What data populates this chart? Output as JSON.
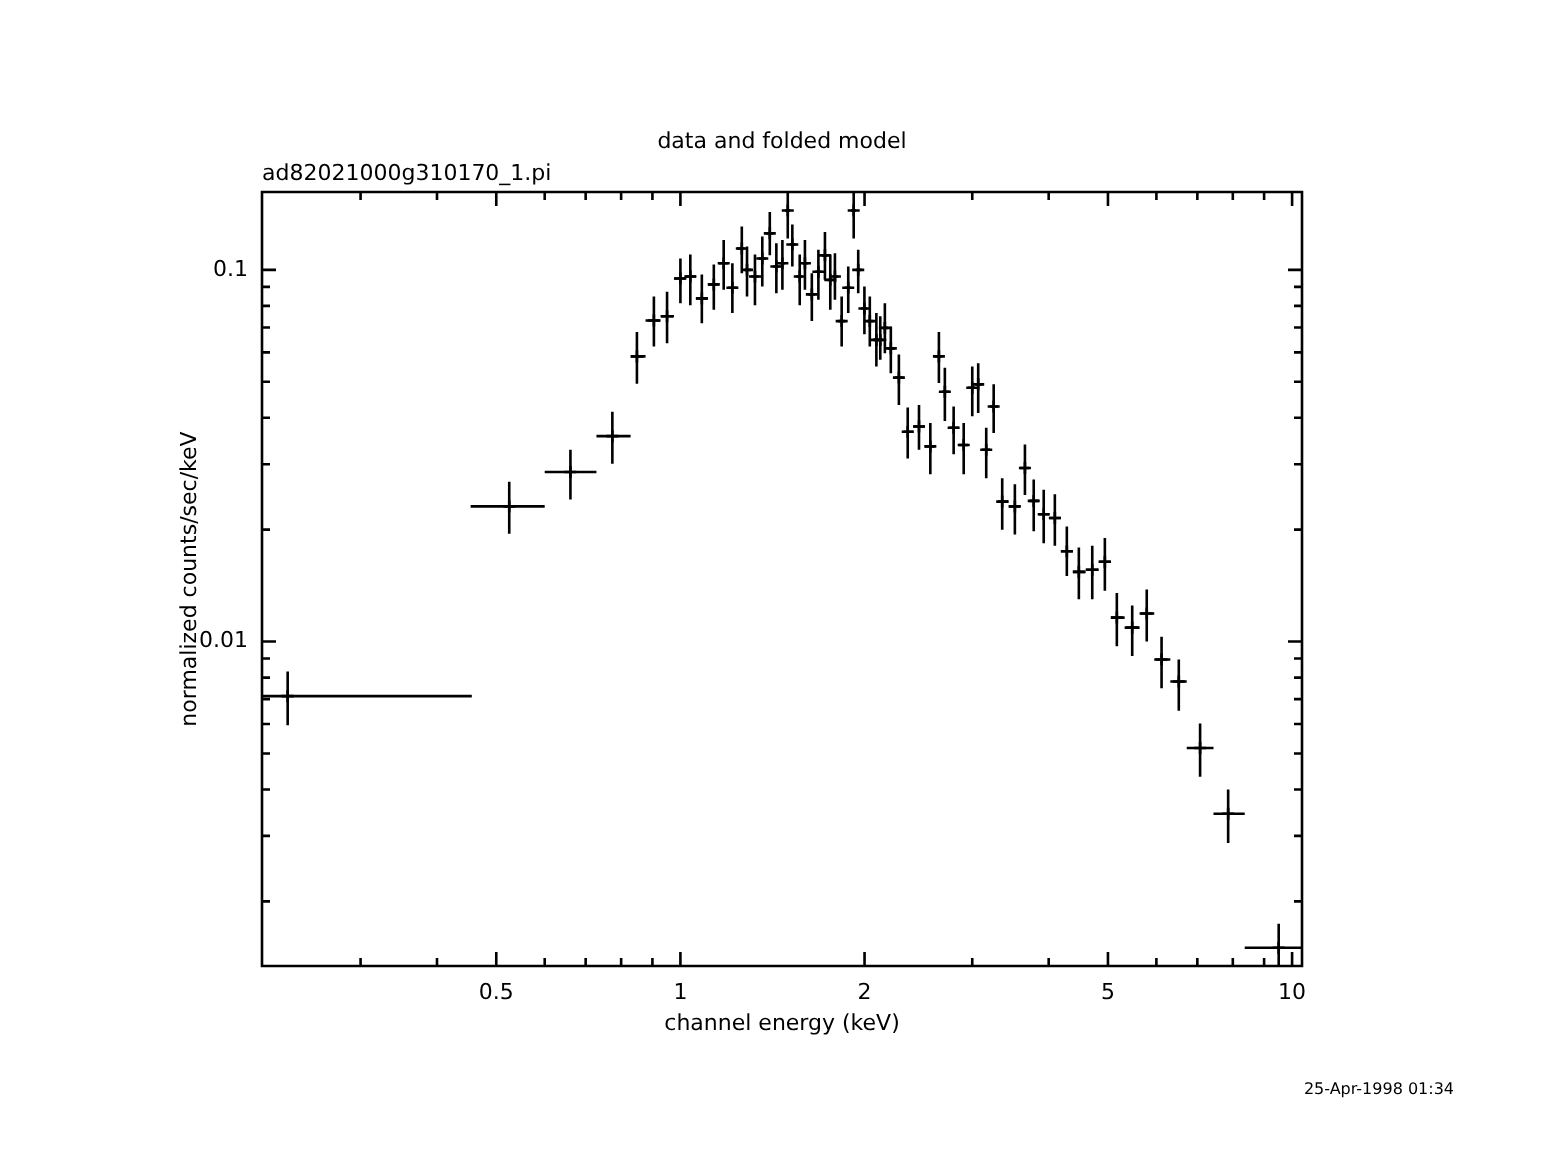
{
  "chart_data": {
    "type": "scatter",
    "title": "data and folded model",
    "subtitle": "ad82021000g310170_1.pi",
    "xlabel": "channel energy (keV)",
    "ylabel": "normalized counts/sec/keV",
    "annotations": [
      "25-Apr-1998 01:34"
    ],
    "log": "xy",
    "marker": "cross",
    "color": "#000000",
    "xlim": [
      0.207,
      10.38
    ],
    "ylim": [
      0.00134,
      0.162
    ],
    "xticks": [
      {
        "value": 0.3,
        "label": null
      },
      {
        "value": 0.4,
        "label": null
      },
      0.5,
      {
        "value": 0.6,
        "label": null
      },
      {
        "value": 0.7,
        "label": null
      },
      {
        "value": 0.8,
        "label": null
      },
      {
        "value": 0.9,
        "label": null
      },
      1,
      2,
      {
        "value": 3,
        "label": null
      },
      {
        "value": 4,
        "label": null
      },
      5,
      {
        "value": 6,
        "label": null
      },
      {
        "value": 7,
        "label": null
      },
      {
        "value": 8,
        "label": null
      },
      {
        "value": 9,
        "label": null
      },
      10
    ],
    "yticks": [
      {
        "value": 0.002,
        "label": null
      },
      {
        "value": 0.003,
        "label": null
      },
      {
        "value": 0.004,
        "label": null
      },
      {
        "value": 0.005,
        "label": null
      },
      {
        "value": 0.006,
        "label": null
      },
      {
        "value": 0.007,
        "label": null
      },
      {
        "value": 0.008,
        "label": null
      },
      {
        "value": 0.009,
        "label": null
      },
      0.01,
      {
        "value": 0.02,
        "label": null
      },
      {
        "value": 0.03,
        "label": null
      },
      {
        "value": 0.04,
        "label": null
      },
      {
        "value": 0.05,
        "label": null
      },
      {
        "value": 0.06,
        "label": null
      },
      {
        "value": 0.07,
        "label": null
      },
      {
        "value": 0.08,
        "label": null
      },
      {
        "value": 0.09,
        "label": null
      },
      0.1
    ],
    "x": [
      0.228,
      0.525,
      0.661,
      0.774,
      0.849,
      0.905,
      0.951,
      1.0,
      1.038,
      1.084,
      1.134,
      1.177,
      1.216,
      1.26,
      1.285,
      1.324,
      1.361,
      1.4,
      1.435,
      1.468,
      1.498,
      1.524,
      1.567,
      1.598,
      1.64,
      1.681,
      1.723,
      1.758,
      1.789,
      1.835,
      1.881,
      1.92,
      1.953,
      1.999,
      2.04,
      2.091,
      2.122,
      2.159,
      2.208,
      2.276,
      2.353,
      2.455,
      2.562,
      2.646,
      2.706,
      2.797,
      2.905,
      3.0,
      3.068,
      3.162,
      3.252,
      3.358,
      3.522,
      3.658,
      3.781,
      3.926,
      4.094,
      4.283,
      4.481,
      4.713,
      4.942,
      5.17,
      5.478,
      5.786,
      6.118,
      6.528,
      7.073,
      7.861,
      9.508
    ],
    "values": [
      0.00713,
      0.0231,
      0.0286,
      0.0357,
      0.0585,
      0.0731,
      0.075,
      0.0948,
      0.096,
      0.0838,
      0.0914,
      0.1042,
      0.0895,
      0.1142,
      0.1,
      0.096,
      0.1073,
      0.1254,
      0.1021,
      0.1042,
      0.1444,
      0.117,
      0.096,
      0.1042,
      0.0859,
      0.0988,
      0.1094,
      0.094,
      0.096,
      0.0728,
      0.0895,
      0.1444,
      0.1,
      0.0787,
      0.0728,
      0.0648,
      0.0648,
      0.0698,
      0.0615,
      0.0513,
      0.0367,
      0.0379,
      0.0335,
      0.0585,
      0.047,
      0.0376,
      0.0338,
      0.0482,
      0.0492,
      0.0328,
      0.0429,
      0.0238,
      0.0231,
      0.0293,
      0.0239,
      0.022,
      0.0215,
      0.0175,
      0.0154,
      0.0156,
      0.0164,
      0.0116,
      0.0109,
      0.0119,
      0.00895,
      0.00781,
      0.00517,
      0.00344,
      0.0015
    ],
    "errors": [
      [
        0.00595,
        0.00831
      ],
      [
        0.0195,
        0.0269
      ],
      [
        0.0241,
        0.0328
      ],
      [
        0.0301,
        0.0415
      ],
      [
        0.0494,
        0.0681
      ],
      [
        0.0622,
        0.0848
      ],
      [
        0.0635,
        0.0873
      ],
      [
        0.0813,
        0.1073
      ],
      [
        0.0803,
        0.11
      ],
      [
        0.0719,
        0.0972
      ],
      [
        0.0781,
        0.1034
      ],
      [
        0.0884,
        0.1204
      ],
      [
        0.0765,
        0.1042
      ],
      [
        0.0979,
        0.1308
      ],
      [
        0.0848,
        0.1156
      ],
      [
        0.0803,
        0.11
      ],
      [
        0.0902,
        0.123
      ],
      [
        0.1094,
        0.1432
      ],
      [
        0.0865,
        0.1179
      ],
      [
        0.0884,
        0.1204
      ],
      [
        0.1214,
        0.162
      ],
      [
        0.1021,
        0.1325
      ],
      [
        0.0803,
        0.11
      ],
      [
        0.0884,
        0.1204
      ],
      [
        0.0728,
        0.0979
      ],
      [
        0.0831,
        0.1132
      ],
      [
        0.094,
        0.1265
      ],
      [
        0.0781,
        0.11
      ],
      [
        0.0831,
        0.1108
      ],
      [
        0.0622,
        0.0848
      ],
      [
        0.0765,
        0.1021
      ],
      [
        0.1214,
        0.162
      ],
      [
        0.0865,
        0.1132
      ],
      [
        0.0671,
        0.0902
      ],
      [
        0.0622,
        0.0848
      ],
      [
        0.055,
        0.0765
      ],
      [
        0.0573,
        0.075
      ],
      [
        0.0597,
        0.0813
      ],
      [
        0.0527,
        0.0704
      ],
      [
        0.0433,
        0.0592
      ],
      [
        0.0311,
        0.0426
      ],
      [
        0.0328,
        0.0433
      ],
      [
        0.0282,
        0.0387
      ],
      [
        0.0496,
        0.0681
      ],
      [
        0.0392,
        0.0545
      ],
      [
        0.0319,
        0.0429
      ],
      [
        0.0282,
        0.0387
      ],
      [
        0.0404,
        0.055
      ],
      [
        0.0412,
        0.0561
      ],
      [
        0.0275,
        0.0376
      ],
      [
        0.0364,
        0.0492
      ],
      [
        0.02,
        0.0275
      ],
      [
        0.0194,
        0.0265
      ],
      [
        0.0248,
        0.0339
      ],
      [
        0.0198,
        0.0273
      ],
      [
        0.0184,
        0.0256
      ],
      [
        0.0181,
        0.0249
      ],
      [
        0.015,
        0.0204
      ],
      [
        0.013,
        0.0179
      ],
      [
        0.013,
        0.0181
      ],
      [
        0.0137,
        0.019
      ],
      [
        0.00972,
        0.0135
      ],
      [
        0.00914,
        0.0125
      ],
      [
        0.01,
        0.0138
      ],
      [
        0.00749,
        0.0103
      ],
      [
        0.00651,
        0.00895
      ],
      [
        0.00433,
        0.00602
      ],
      [
        0.00287,
        0.004
      ],
      [
        0.00134,
        0.00174
      ]
    ],
    "xerrors": [
      [
        0.207,
        0.456
      ],
      [
        0.454,
        0.6
      ],
      [
        0.6,
        0.729
      ],
      [
        0.729,
        0.829
      ],
      [
        0.829,
        0.877
      ],
      [
        0.877,
        0.928
      ],
      [
        0.928,
        0.976
      ],
      [
        0.976,
        1.019
      ],
      [
        1.019,
        1.061
      ],
      [
        1.061,
        1.109
      ],
      [
        1.109,
        1.156
      ],
      [
        1.156,
        1.197
      ],
      [
        1.197,
        1.238
      ],
      [
        1.238,
        1.273
      ],
      [
        1.273,
        1.305
      ],
      [
        1.305,
        1.343
      ],
      [
        1.343,
        1.381
      ],
      [
        1.381,
        1.418
      ],
      [
        1.418,
        1.452
      ],
      [
        1.452,
        1.483
      ],
      [
        1.483,
        1.511
      ],
      [
        1.511,
        1.546
      ],
      [
        1.546,
        1.583
      ],
      [
        1.583,
        1.619
      ],
      [
        1.619,
        1.661
      ],
      [
        1.661,
        1.702
      ],
      [
        1.702,
        1.741
      ],
      [
        1.741,
        1.774
      ],
      [
        1.774,
        1.812
      ],
      [
        1.812,
        1.858
      ],
      [
        1.858,
        1.901
      ],
      [
        1.901,
        1.937
      ],
      [
        1.937,
        1.976
      ],
      [
        1.976,
        2.02
      ],
      [
        2.02,
        2.066
      ],
      [
        2.066,
        2.107
      ],
      [
        2.107,
        2.141
      ],
      [
        2.141,
        2.184
      ],
      [
        2.184,
        2.242
      ],
      [
        2.242,
        2.315
      ],
      [
        2.315,
        2.404
      ],
      [
        2.404,
        2.509
      ],
      [
        2.509,
        2.604
      ],
      [
        2.604,
        2.676
      ],
      [
        2.676,
        2.752
      ],
      [
        2.752,
        2.851
      ],
      [
        2.851,
        2.953
      ],
      [
        2.953,
        3.034
      ],
      [
        3.034,
        3.115
      ],
      [
        3.115,
        3.207
      ],
      [
        3.207,
        3.305
      ],
      [
        3.305,
        3.44
      ],
      [
        3.44,
        3.59
      ],
      [
        3.59,
        3.72
      ],
      [
        3.72,
        3.854
      ],
      [
        3.854,
        4.01
      ],
      [
        4.01,
        4.189
      ],
      [
        4.189,
        4.382
      ],
      [
        4.382,
        4.597
      ],
      [
        4.597,
        4.828
      ],
      [
        4.828,
        5.056
      ],
      [
        5.056,
        5.324
      ],
      [
        5.324,
        5.632
      ],
      [
        5.632,
        5.952
      ],
      [
        5.952,
        6.323
      ],
      [
        6.323,
        6.726
      ],
      [
        6.726,
        7.439
      ],
      [
        7.439,
        8.367
      ],
      [
        8.367,
        10.38
      ]
    ]
  }
}
